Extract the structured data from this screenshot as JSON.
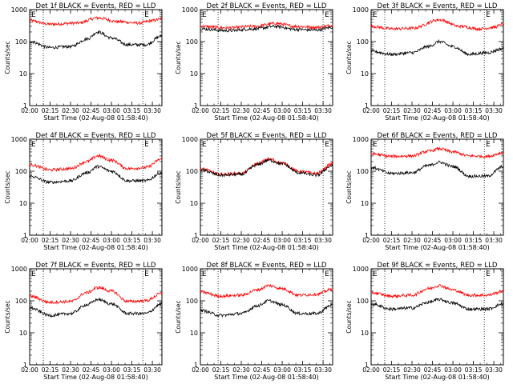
{
  "chart_data": [
    {
      "type": "line",
      "title": "Det 1f BLACK = Events, RED = LLD",
      "ylabel": "Counts/sec",
      "xlabel": "Start Time (02-Aug-08 01:58:40)",
      "panel_letter": "E",
      "yscale": "log",
      "ylim": [
        1,
        1000
      ],
      "yticks": [
        "1",
        "10",
        "100",
        "1000"
      ],
      "xticks": [
        "02:00",
        "02:15",
        "02:30",
        "02:45",
        "03:00",
        "03:15",
        "03:30"
      ],
      "x_range_minutes_after_02_00": [
        0,
        97
      ],
      "event_markers_minutes_after_02_00": [
        10,
        83
      ],
      "series": [
        {
          "name": "BLACK = Events",
          "color": "#000000",
          "keyframes": [
            [
              0,
              100
            ],
            [
              15,
              65
            ],
            [
              30,
              70
            ],
            [
              42,
              120
            ],
            [
              50,
              200
            ],
            [
              60,
              130
            ],
            [
              72,
              80
            ],
            [
              85,
              80
            ],
            [
              97,
              150
            ]
          ]
        },
        {
          "name": "RED = LLD",
          "color": "#ff0000",
          "keyframes": [
            [
              0,
              450
            ],
            [
              15,
              350
            ],
            [
              35,
              380
            ],
            [
              50,
              550
            ],
            [
              65,
              420
            ],
            [
              80,
              380
            ],
            [
              90,
              450
            ],
            [
              97,
              520
            ]
          ]
        }
      ]
    },
    {
      "type": "line",
      "title": "Det 2f BLACK = Events, RED = LLD",
      "ylabel": "Counts/sec",
      "xlabel": "Start Time (02-Aug-08 01:58:40)",
      "panel_letter": "E",
      "yscale": "log",
      "ylim": [
        1,
        1000
      ],
      "yticks": [
        "1",
        "10",
        "100",
        "1000"
      ],
      "xticks": [
        "02:00",
        "02:15",
        "02:30",
        "02:45",
        "03:00",
        "03:15",
        "03:30"
      ],
      "x_range_minutes_after_02_00": [
        0,
        97
      ],
      "event_markers_minutes_after_02_00": [
        13,
        90
      ],
      "series": [
        {
          "name": "BLACK = Events",
          "color": "#000000",
          "keyframes": [
            [
              0,
              250
            ],
            [
              20,
              220
            ],
            [
              40,
              250
            ],
            [
              55,
              300
            ],
            [
              70,
              240
            ],
            [
              85,
              230
            ],
            [
              97,
              280
            ]
          ]
        },
        {
          "name": "RED = LLD",
          "color": "#ff0000",
          "keyframes": [
            [
              0,
              300
            ],
            [
              20,
              270
            ],
            [
              40,
              300
            ],
            [
              55,
              370
            ],
            [
              70,
              300
            ],
            [
              85,
              280
            ],
            [
              97,
              320
            ]
          ]
        }
      ]
    },
    {
      "type": "line",
      "title": "Det 3f BLACK = Events, RED = LLD",
      "ylabel": "Counts/sec",
      "xlabel": "Start Time (02-Aug-08 01:58:40)",
      "panel_letter": "E",
      "yscale": "log",
      "ylim": [
        1,
        1000
      ],
      "yticks": [
        "1",
        "10",
        "100",
        "1000"
      ],
      "xticks": [
        "02:00",
        "02:15",
        "02:30",
        "02:45",
        "03:00",
        "03:15",
        "03:30"
      ],
      "x_range_minutes_after_02_00": [
        0,
        97
      ],
      "event_markers_minutes_after_02_00": [
        10,
        83
      ],
      "series": [
        {
          "name": "BLACK = Events",
          "color": "#000000",
          "keyframes": [
            [
              0,
              50
            ],
            [
              15,
              40
            ],
            [
              30,
              45
            ],
            [
              42,
              70
            ],
            [
              50,
              100
            ],
            [
              60,
              70
            ],
            [
              72,
              40
            ],
            [
              85,
              45
            ],
            [
              97,
              60
            ]
          ]
        },
        {
          "name": "RED = LLD",
          "color": "#ff0000",
          "keyframes": [
            [
              0,
              300
            ],
            [
              15,
              250
            ],
            [
              30,
              260
            ],
            [
              50,
              480
            ],
            [
              65,
              300
            ],
            [
              80,
              250
            ],
            [
              90,
              280
            ],
            [
              97,
              350
            ]
          ]
        }
      ]
    },
    {
      "type": "line",
      "title": "Det 4f BLACK = Events, RED = LLD",
      "ylabel": "Counts/sec",
      "xlabel": "Start Time (02-Aug-08 01:58:40)",
      "panel_letter": "E",
      "yscale": "log",
      "ylim": [
        1,
        1000
      ],
      "yticks": [
        "1",
        "10",
        "100",
        "1000"
      ],
      "xticks": [
        "02:00",
        "02:15",
        "02:30",
        "02:45",
        "03:00",
        "03:15",
        "03:30"
      ],
      "x_range_minutes_after_02_00": [
        0,
        97
      ],
      "event_markers_minutes_after_02_00": [
        10,
        83
      ],
      "series": [
        {
          "name": "BLACK = Events",
          "color": "#000000",
          "keyframes": [
            [
              0,
              70
            ],
            [
              15,
              45
            ],
            [
              30,
              50
            ],
            [
              42,
              90
            ],
            [
              50,
              140
            ],
            [
              60,
              100
            ],
            [
              72,
              50
            ],
            [
              85,
              50
            ],
            [
              97,
              90
            ]
          ]
        },
        {
          "name": "RED = LLD",
          "color": "#ff0000",
          "keyframes": [
            [
              0,
              160
            ],
            [
              15,
              110
            ],
            [
              30,
              120
            ],
            [
              42,
              200
            ],
            [
              50,
              300
            ],
            [
              60,
              220
            ],
            [
              72,
              120
            ],
            [
              85,
              130
            ],
            [
              97,
              240
            ]
          ]
        }
      ]
    },
    {
      "type": "line",
      "title": "Det 5f BLACK = Events, RED = LLD",
      "ylabel": "Counts/sec",
      "xlabel": "Start Time (02-Aug-08 01:58:40)",
      "panel_letter": "E",
      "yscale": "log",
      "ylim": [
        1,
        1000
      ],
      "yticks": [
        "1",
        "10",
        "100",
        "1000"
      ],
      "xticks": [
        "02:00",
        "02:15",
        "02:30",
        "02:45",
        "03:00",
        "03:15",
        "03:30"
      ],
      "x_range_minutes_after_02_00": [
        0,
        97
      ],
      "event_markers_minutes_after_02_00": [
        13,
        90
      ],
      "series": [
        {
          "name": "BLACK = Events",
          "color": "#000000",
          "keyframes": [
            [
              0,
              110
            ],
            [
              15,
              75
            ],
            [
              30,
              80
            ],
            [
              42,
              160
            ],
            [
              50,
              220
            ],
            [
              60,
              170
            ],
            [
              72,
              90
            ],
            [
              85,
              75
            ],
            [
              97,
              150
            ]
          ]
        },
        {
          "name": "RED = LLD",
          "color": "#ff0000",
          "keyframes": [
            [
              0,
              120
            ],
            [
              15,
              80
            ],
            [
              30,
              85
            ],
            [
              42,
              170
            ],
            [
              50,
              240
            ],
            [
              60,
              180
            ],
            [
              72,
              100
            ],
            [
              85,
              85
            ],
            [
              97,
              170
            ]
          ]
        }
      ]
    },
    {
      "type": "line",
      "title": "Det 6f BLACK = Events, RED = LLD",
      "ylabel": "Counts/sec",
      "xlabel": "Start Time (02-Aug-08 01:58:40)",
      "panel_letter": "E",
      "yscale": "log",
      "ylim": [
        1,
        1000
      ],
      "yticks": [
        "1",
        "10",
        "100",
        "1000"
      ],
      "xticks": [
        "02:00",
        "02:15",
        "02:30",
        "02:45",
        "03:00",
        "03:15",
        "03:30"
      ],
      "x_range_minutes_after_02_00": [
        0,
        97
      ],
      "event_markers_minutes_after_02_00": [
        10,
        83
      ],
      "series": [
        {
          "name": "BLACK = Events",
          "color": "#000000",
          "keyframes": [
            [
              0,
              130
            ],
            [
              15,
              85
            ],
            [
              30,
              90
            ],
            [
              42,
              150
            ],
            [
              50,
              190
            ],
            [
              60,
              140
            ],
            [
              72,
              70
            ],
            [
              85,
              70
            ],
            [
              97,
              140
            ]
          ]
        },
        {
          "name": "RED = LLD",
          "color": "#ff0000",
          "keyframes": [
            [
              0,
              350
            ],
            [
              15,
              290
            ],
            [
              30,
              300
            ],
            [
              42,
              420
            ],
            [
              50,
              500
            ],
            [
              60,
              400
            ],
            [
              72,
              300
            ],
            [
              85,
              290
            ],
            [
              97,
              380
            ]
          ]
        }
      ]
    },
    {
      "type": "line",
      "title": "Det 7f BLACK = Events, RED = LLD",
      "ylabel": "Counts/sec",
      "xlabel": "Start Time (02-Aug-08 01:58:40)",
      "panel_letter": "E",
      "yscale": "log",
      "ylim": [
        1,
        1000
      ],
      "yticks": [
        "1",
        "10",
        "100",
        "1000"
      ],
      "xticks": [
        "02:00",
        "02:15",
        "02:30",
        "02:45",
        "03:00",
        "03:15",
        "03:30"
      ],
      "x_range_minutes_after_02_00": [
        0,
        97
      ],
      "event_markers_minutes_after_02_00": [
        10,
        83
      ],
      "series": [
        {
          "name": "BLACK = Events",
          "color": "#000000",
          "keyframes": [
            [
              0,
              60
            ],
            [
              15,
              35
            ],
            [
              30,
              40
            ],
            [
              42,
              75
            ],
            [
              50,
              110
            ],
            [
              60,
              80
            ],
            [
              72,
              40
            ],
            [
              85,
              40
            ],
            [
              97,
              80
            ]
          ]
        },
        {
          "name": "RED = LLD",
          "color": "#ff0000",
          "keyframes": [
            [
              0,
              140
            ],
            [
              15,
              90
            ],
            [
              30,
              95
            ],
            [
              42,
              180
            ],
            [
              50,
              260
            ],
            [
              60,
              200
            ],
            [
              72,
              95
            ],
            [
              85,
              100
            ],
            [
              97,
              170
            ]
          ]
        }
      ]
    },
    {
      "type": "line",
      "title": "Det 8f BLACK = Events, RED = LLD",
      "ylabel": "Counts/sec",
      "xlabel": "Start Time (02-Aug-08 01:58:40)",
      "panel_letter": "E",
      "yscale": "log",
      "ylim": [
        1,
        1000
      ],
      "yticks": [
        "1",
        "10",
        "100",
        "1000"
      ],
      "xticks": [
        "02:00",
        "02:15",
        "02:30",
        "02:45",
        "03:00",
        "03:15",
        "03:30"
      ],
      "x_range_minutes_after_02_00": [
        0,
        97
      ],
      "event_markers_minutes_after_02_00": [
        13,
        90
      ],
      "series": [
        {
          "name": "BLACK = Events",
          "color": "#000000",
          "keyframes": [
            [
              0,
              50
            ],
            [
              15,
              35
            ],
            [
              30,
              40
            ],
            [
              42,
              70
            ],
            [
              50,
              100
            ],
            [
              60,
              75
            ],
            [
              72,
              40
            ],
            [
              85,
              40
            ],
            [
              97,
              75
            ]
          ]
        },
        {
          "name": "RED = LLD",
          "color": "#ff0000",
          "keyframes": [
            [
              0,
              190
            ],
            [
              15,
              140
            ],
            [
              30,
              150
            ],
            [
              42,
              220
            ],
            [
              50,
              300
            ],
            [
              60,
              240
            ],
            [
              72,
              150
            ],
            [
              85,
              160
            ],
            [
              97,
              230
            ]
          ]
        }
      ]
    },
    {
      "type": "line",
      "title": "Det 9f BLACK = Events, RED = LLD",
      "ylabel": "Counts/sec",
      "xlabel": "Start Time (02-Aug-08 01:58:40)",
      "panel_letter": "E",
      "yscale": "log",
      "ylim": [
        1,
        1000
      ],
      "yticks": [
        "1",
        "10",
        "100",
        "1000"
      ],
      "xticks": [
        "02:00",
        "02:15",
        "02:30",
        "02:45",
        "03:00",
        "03:15",
        "03:30"
      ],
      "x_range_minutes_after_02_00": [
        0,
        97
      ],
      "event_markers_minutes_after_02_00": [
        10,
        83
      ],
      "series": [
        {
          "name": "BLACK = Events",
          "color": "#000000",
          "keyframes": [
            [
              0,
              80
            ],
            [
              15,
              55
            ],
            [
              30,
              60
            ],
            [
              42,
              90
            ],
            [
              50,
              110
            ],
            [
              60,
              85
            ],
            [
              72,
              55
            ],
            [
              85,
              55
            ],
            [
              97,
              80
            ]
          ]
        },
        {
          "name": "RED = LLD",
          "color": "#ff0000",
          "keyframes": [
            [
              0,
              180
            ],
            [
              15,
              140
            ],
            [
              30,
              150
            ],
            [
              42,
              240
            ],
            [
              50,
              300
            ],
            [
              60,
              220
            ],
            [
              72,
              150
            ],
            [
              85,
              150
            ],
            [
              97,
              200
            ]
          ]
        }
      ]
    }
  ]
}
